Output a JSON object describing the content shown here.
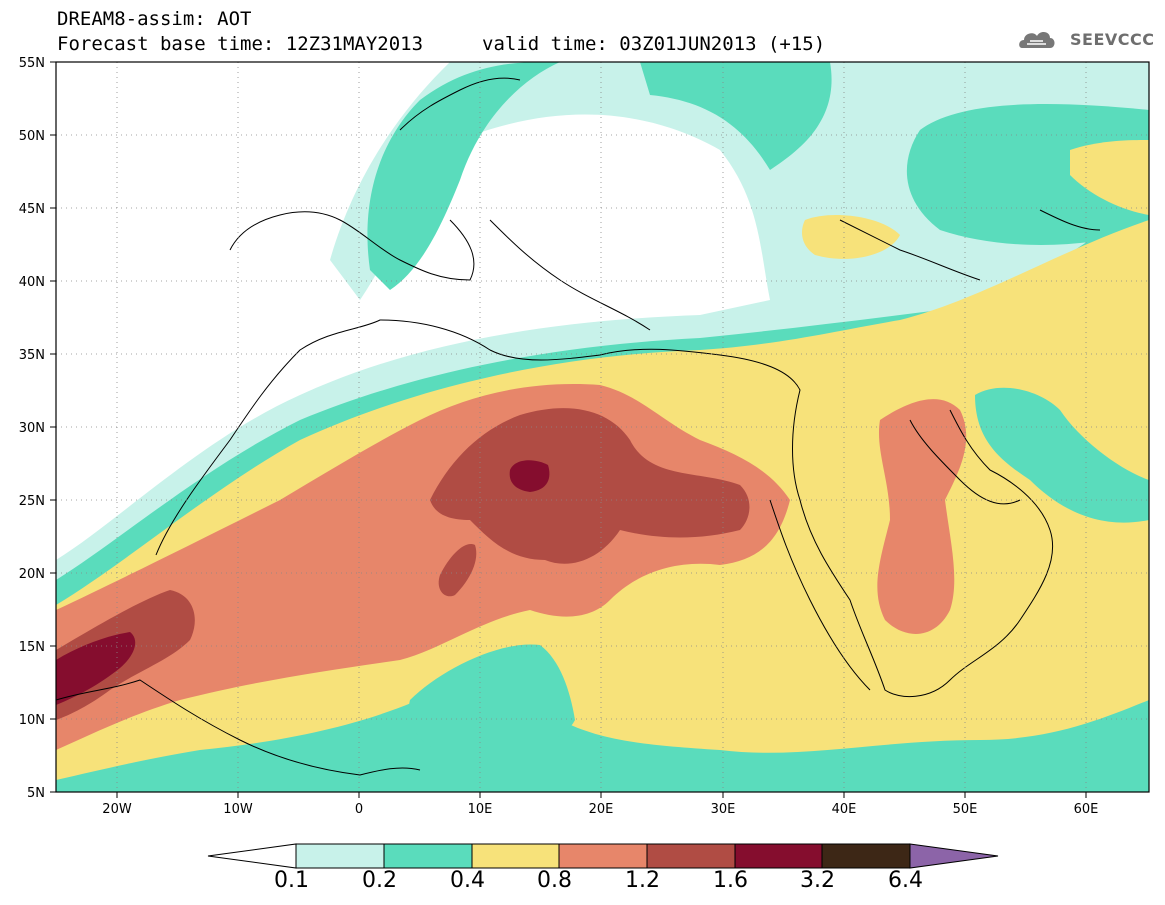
{
  "header": {
    "title": "DREAM8-assim: AOT",
    "base_time": "Forecast base time: 12Z31MAY2013",
    "valid_time": "valid time: 03Z01JUN2013 (+15)"
  },
  "logo": {
    "text": "SEEVCCC"
  },
  "map": {
    "lon_range": [
      -25,
      65
    ],
    "lat_range": [
      5,
      55
    ],
    "lat_ticks": [
      "55N",
      "50N",
      "45N",
      "40N",
      "35N",
      "30N",
      "25N",
      "20N",
      "15N",
      "10N",
      "5N"
    ],
    "lon_ticks": [
      "20W",
      "10W",
      "0",
      "10E",
      "20E",
      "30E",
      "40E",
      "50E",
      "60E"
    ],
    "grid": true,
    "variable": "Aerosol optical thickness"
  },
  "colorbar": {
    "labels": [
      "0.1",
      "0.2",
      "0.4",
      "0.8",
      "1.2",
      "1.6",
      "3.2",
      "6.4"
    ],
    "colors": [
      "#ffffff",
      "#c8f2ea",
      "#5adcbc",
      "#f7e27a",
      "#e7866a",
      "#b04c44",
      "#850d2e",
      "#3d2716",
      "#8c64a8"
    ]
  }
}
